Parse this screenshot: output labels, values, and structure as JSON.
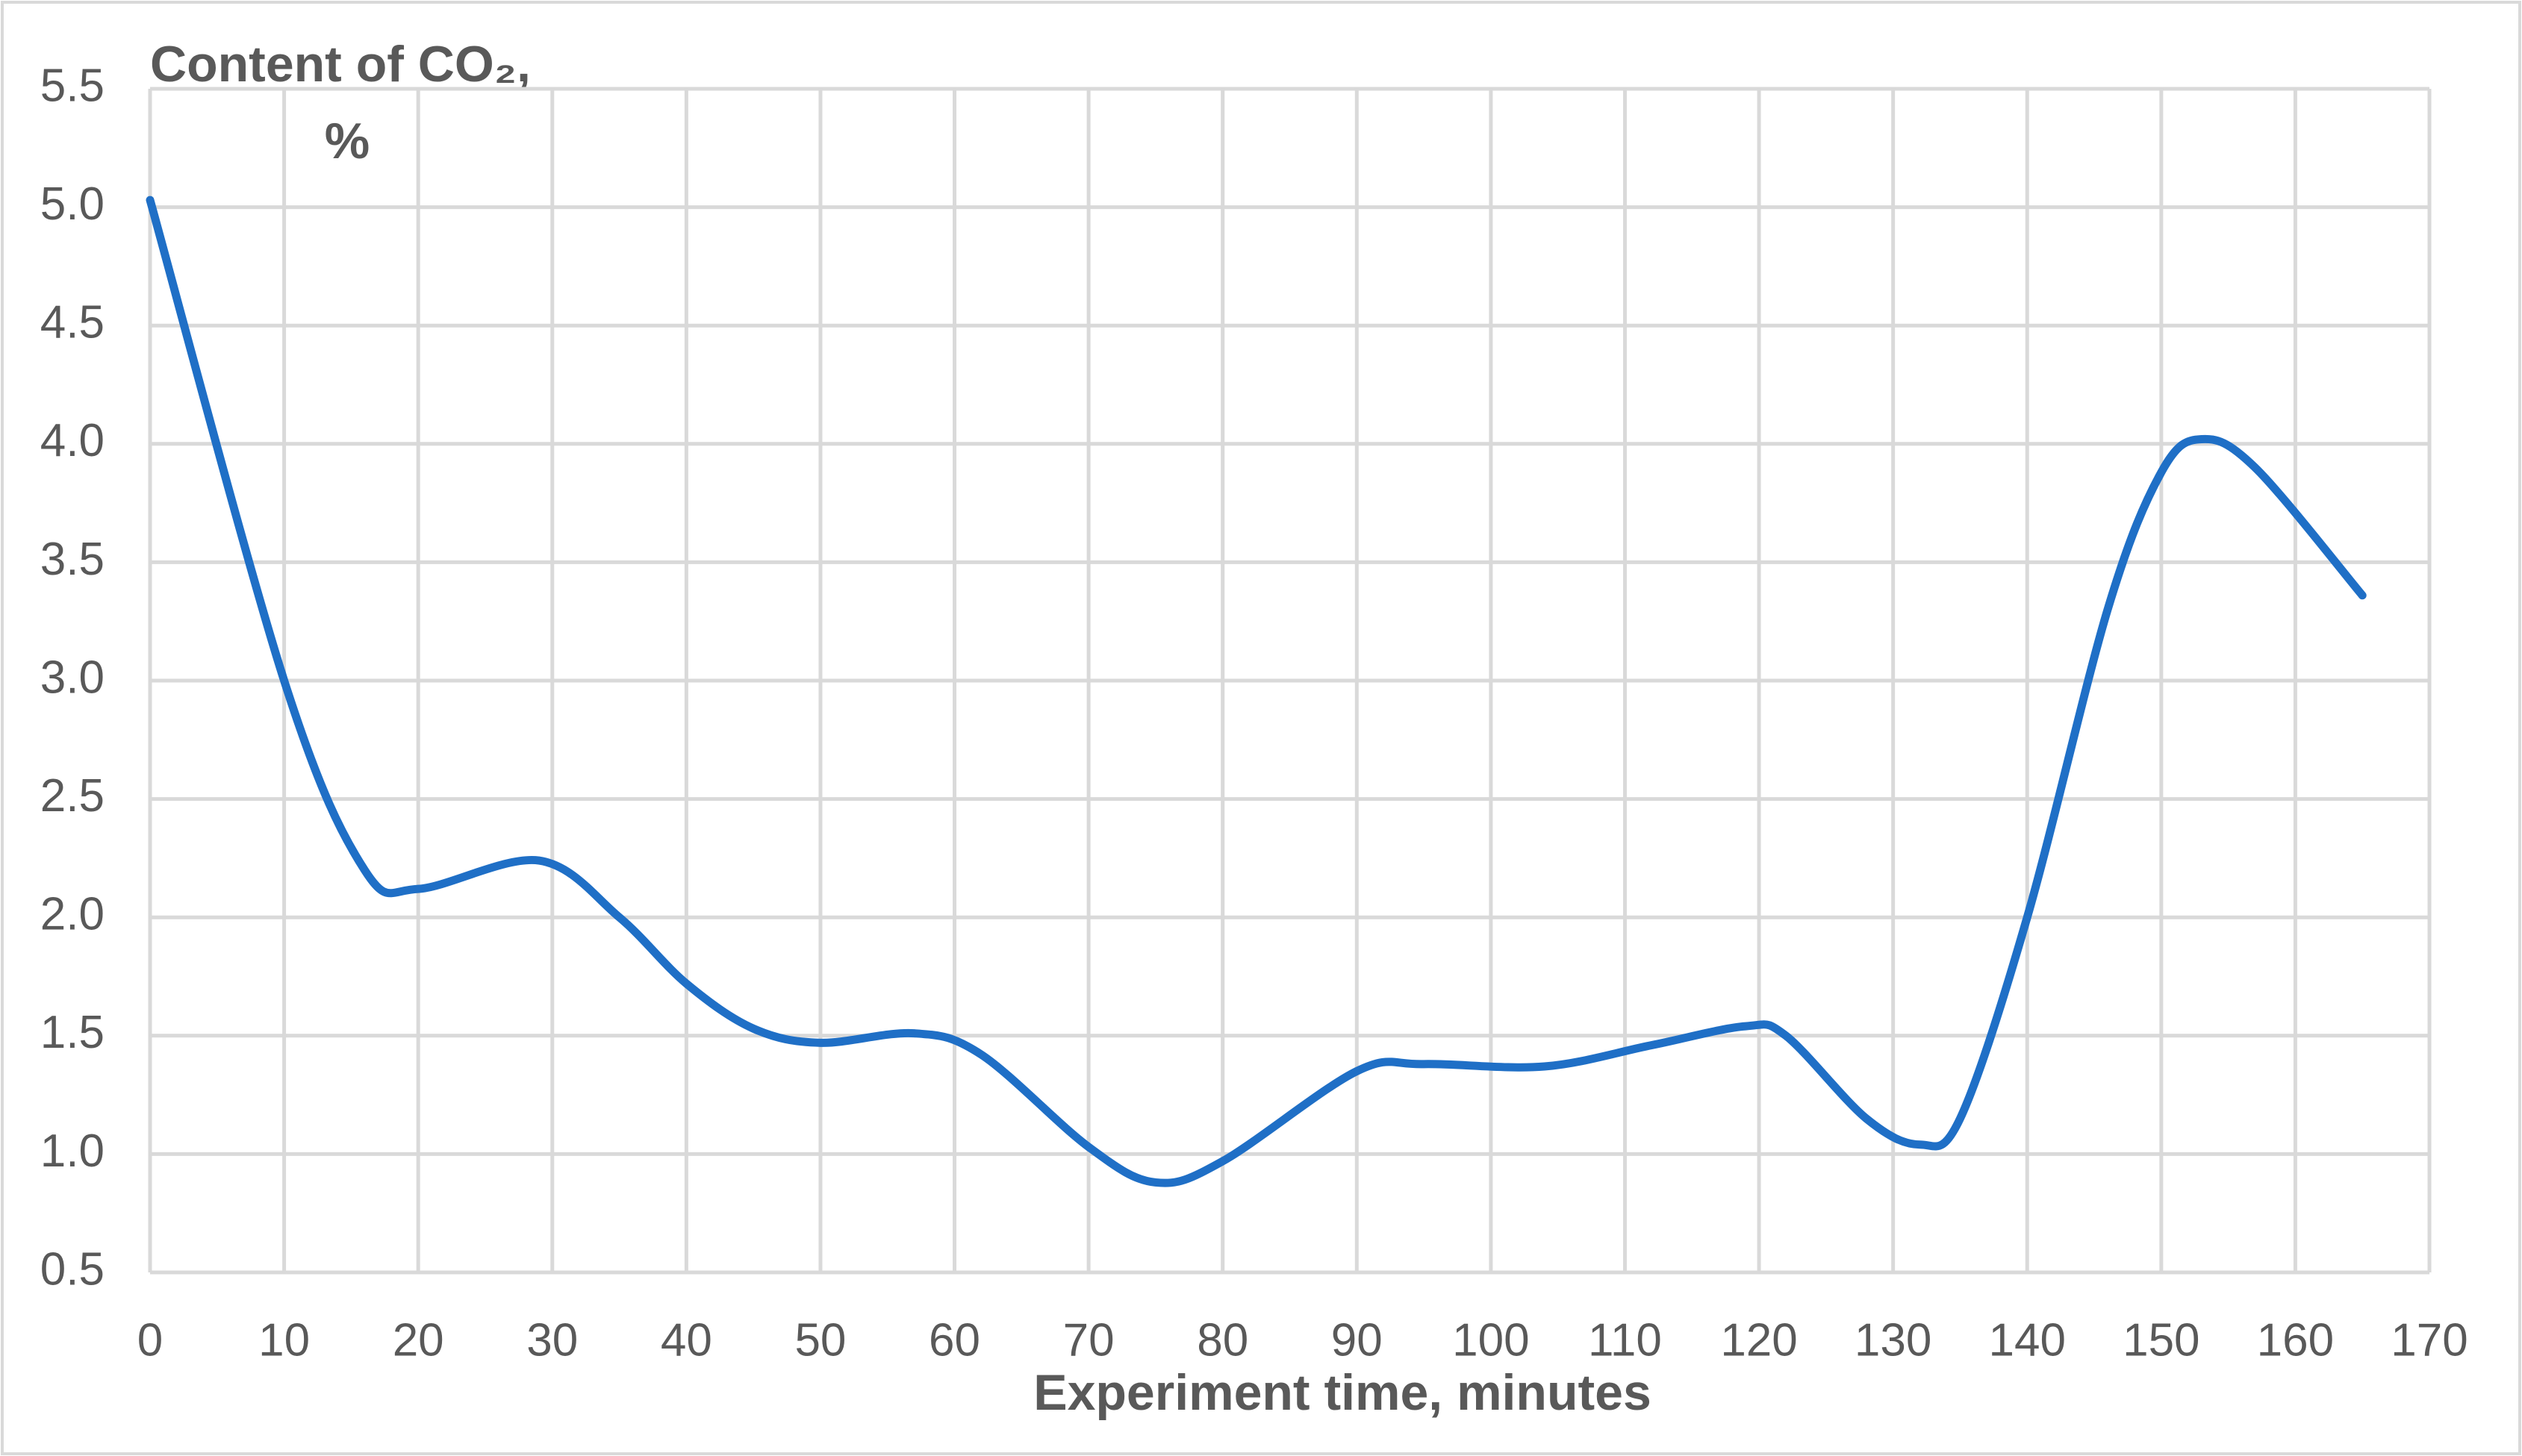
{
  "chart_data": {
    "type": "line",
    "ylabel_lines": [
      "Content of CO₂,",
      "%"
    ],
    "xlabel": "Experiment time, minutes",
    "x": [
      0,
      10,
      16,
      20,
      29,
      35,
      40,
      45,
      50,
      57,
      62,
      70,
      75,
      80,
      90,
      95,
      104,
      112,
      119,
      122,
      128,
      132,
      135,
      140,
      146,
      150,
      153,
      157,
      165
    ],
    "series": [
      {
        "color": "#1f6fc6",
        "values": [
          5.03,
          3.0,
          2.2,
          2.12,
          2.24,
          2.0,
          1.72,
          1.53,
          1.47,
          1.51,
          1.42,
          1.03,
          0.88,
          0.97,
          1.35,
          1.38,
          1.37,
          1.46,
          1.54,
          1.5,
          1.15,
          1.04,
          1.15,
          2.0,
          3.3,
          3.88,
          4.02,
          3.9,
          3.36
        ]
      }
    ],
    "xlim": [
      0,
      170
    ],
    "xticks": [
      0,
      10,
      20,
      30,
      40,
      50,
      60,
      70,
      80,
      90,
      100,
      110,
      120,
      130,
      140,
      150,
      160,
      170
    ],
    "ylim": [
      0.5,
      5.5
    ],
    "yticks": [
      0.5,
      {
        "value": 1,
        "label": "1.0"
      },
      1.5,
      {
        "value": 2,
        "label": "2.0"
      },
      2.5,
      {
        "value": 3,
        "label": "3.0"
      },
      3.5,
      {
        "value": 4,
        "label": "4.0"
      },
      4.5,
      {
        "value": 5,
        "label": "5.0"
      },
      5.5
    ],
    "grid": true,
    "smooth": true
  }
}
